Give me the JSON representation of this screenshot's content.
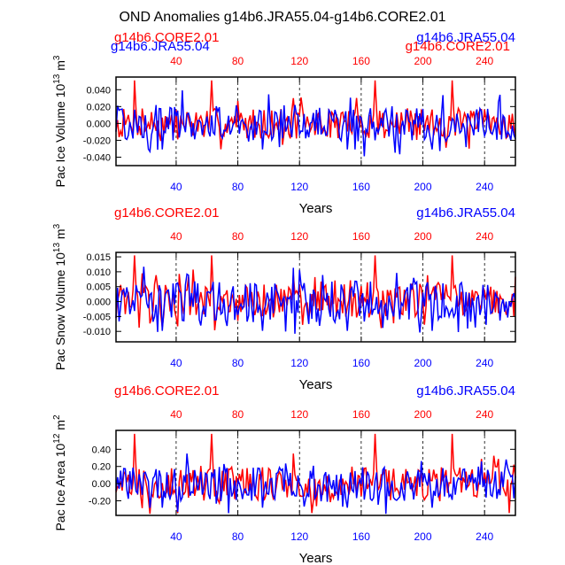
{
  "title": "OND Anomalies g14b6.JRA55.04-g14b6.CORE2.01",
  "colors": {
    "core": "#ff0000",
    "jra": "#0000ff",
    "axis": "#000000",
    "ref": "#000000"
  },
  "chart_data": [
    {
      "type": "line",
      "ylabel": "Pac Ice Volume 10",
      "ylabel_sup": "13",
      "ylabel_unit": " m",
      "ylabel_unit_sup": "3",
      "xlabel": "Years",
      "ylim": [
        -0.05,
        0.055
      ],
      "yticks": [
        -0.04,
        -0.02,
        0.0,
        0.02,
        0.04
      ],
      "ytick_labels": [
        "-0.040",
        "-0.020",
        "0.000",
        "0.020",
        "0.040"
      ],
      "xlim": [
        1,
        260
      ],
      "xticks": [
        40,
        80,
        120,
        160,
        200,
        240
      ],
      "xtick_labels": [
        "40",
        "80",
        "120",
        "160",
        "200",
        "240"
      ],
      "ref_lines": [
        40,
        80,
        120,
        160,
        200,
        240
      ],
      "legend_left": "g14b6.CORE2.01",
      "legend_right": "g14b6.JRA55.04",
      "overlap_left": "g14b6.JRA55.04",
      "overlap_right": "g14b6.CORE2.01",
      "series_core": "g14b6.CORE2.01",
      "series_jra": "g14b6.JRA55.04",
      "core_amp": 0.018,
      "jra_amp": 0.022,
      "peak": 0.051,
      "peak_low": 0.03
    },
    {
      "type": "line",
      "ylabel": "Pac Snow Volume 10",
      "ylabel_sup": "13",
      "ylabel_unit": " m",
      "ylabel_unit_sup": "3",
      "xlabel": "Years",
      "ylim": [
        -0.0135,
        0.0165
      ],
      "yticks": [
        -0.01,
        -0.005,
        0.0,
        0.005,
        0.01,
        0.015
      ],
      "ytick_labels": [
        "-0.010",
        "-0.005",
        "0.000",
        "0.005",
        "0.010",
        "0.015"
      ],
      "xlim": [
        1,
        260
      ],
      "xticks": [
        40,
        80,
        120,
        160,
        200,
        240
      ],
      "xtick_labels": [
        "40",
        "80",
        "120",
        "160",
        "200",
        "240"
      ],
      "ref_lines": [
        40,
        80,
        120,
        160,
        200,
        240
      ],
      "legend_left": "g14b6.CORE2.01",
      "legend_right": "g14b6.JRA55.04",
      "series_core": "g14b6.CORE2.01",
      "series_jra": "g14b6.JRA55.04",
      "core_amp": 0.006,
      "jra_amp": 0.007,
      "peak": 0.0155,
      "peak_low": 0.009
    },
    {
      "type": "line",
      "ylabel": "Pac Ice Area 10",
      "ylabel_sup": "12",
      "ylabel_unit": " m",
      "ylabel_unit_sup": "2",
      "xlabel": "Years",
      "ylim": [
        -0.37,
        0.62
      ],
      "yticks": [
        -0.2,
        0.0,
        0.2,
        0.4
      ],
      "ytick_labels": [
        "-0.20",
        "0.00",
        "0.20",
        "0.40"
      ],
      "xlim": [
        1,
        260
      ],
      "xticks": [
        40,
        80,
        120,
        160,
        200,
        240
      ],
      "xtick_labels": [
        "40",
        "80",
        "120",
        "160",
        "200",
        "240"
      ],
      "ref_lines": [
        40,
        80,
        120,
        160,
        200,
        240
      ],
      "legend_left": "g14b6.CORE2.01",
      "legend_right": "g14b6.JRA55.04",
      "series_core": "g14b6.CORE2.01",
      "series_jra": "g14b6.JRA55.04",
      "core_amp": 0.2,
      "jra_amp": 0.2,
      "peak": 0.58,
      "peak_low": 0.35
    }
  ]
}
